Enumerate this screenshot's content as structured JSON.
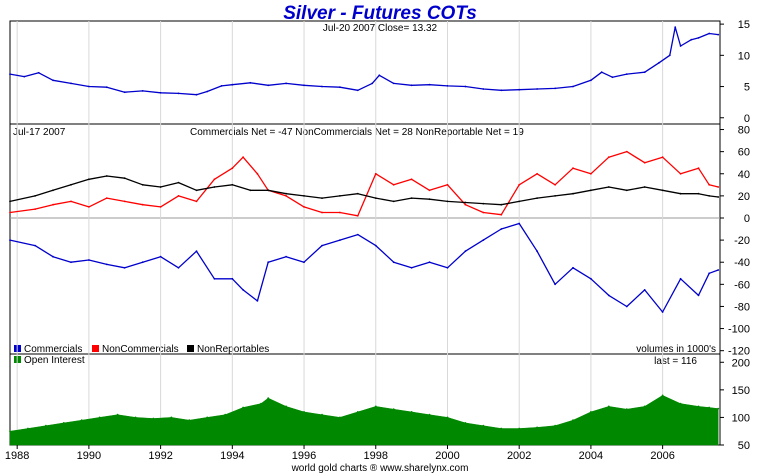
{
  "chart_data": [
    {
      "type": "line",
      "panel": "price",
      "title": "Silver - Futures COTs",
      "subtitle": "Jul-20  2007    Close= 13.32",
      "yticks": [
        0,
        5,
        10,
        15
      ],
      "ylim": [
        -1,
        15.5
      ],
      "xlim": [
        1987.8,
        2007.6
      ],
      "series": [
        {
          "color": "#0000cc",
          "x": [
            1987.8,
            1988.2,
            1988.6,
            1989.0,
            1989.5,
            1990.0,
            1990.5,
            1991.0,
            1991.5,
            1992.0,
            1992.5,
            1993.0,
            1993.3,
            1993.7,
            1994.0,
            1994.5,
            1995.0,
            1995.5,
            1996.0,
            1996.5,
            1997.0,
            1997.5,
            1997.9,
            1998.1,
            1998.5,
            1999.0,
            1999.5,
            2000.0,
            2000.5,
            2001.0,
            2001.5,
            2002.0,
            2002.5,
            2003.0,
            2003.5,
            2004.0,
            2004.3,
            2004.6,
            2005.0,
            2005.5,
            2005.9,
            2006.2,
            2006.35,
            2006.5,
            2006.8,
            2007.0,
            2007.3,
            2007.55
          ],
          "y": [
            7.0,
            6.6,
            7.2,
            6.0,
            5.5,
            5.0,
            4.9,
            4.1,
            4.3,
            4.0,
            3.9,
            3.7,
            4.2,
            5.1,
            5.3,
            5.6,
            5.2,
            5.5,
            5.2,
            5.0,
            4.9,
            4.4,
            5.5,
            6.8,
            5.5,
            5.2,
            5.3,
            5.1,
            5.0,
            4.6,
            4.4,
            4.5,
            4.6,
            4.7,
            5.0,
            6.0,
            7.3,
            6.5,
            7.0,
            7.3,
            8.8,
            10.0,
            14.5,
            11.5,
            12.5,
            12.8,
            13.5,
            13.32
          ]
        }
      ]
    },
    {
      "type": "line",
      "panel": "cot",
      "date_label": "Jul-17  2007",
      "header": "Commercials Net = -47         NonCommercials Net = 28         NonReportable Net = 19",
      "yticks": [
        80,
        60,
        40,
        20,
        0,
        -20,
        -40,
        -60,
        -80,
        -100,
        -120
      ],
      "ylim": [
        -123,
        85
      ],
      "xlim": [
        1987.8,
        2007.6
      ],
      "note": "volumes in 1000's",
      "series": [
        {
          "name": "Commercials",
          "color": "#0000cc",
          "x": [
            1987.8,
            1988.5,
            1989.0,
            1989.5,
            1990.0,
            1990.5,
            1991.0,
            1991.5,
            1992.0,
            1992.5,
            1993.0,
            1993.5,
            1994.0,
            1994.3,
            1994.7,
            1995.0,
            1995.5,
            1996.0,
            1996.5,
            1997.0,
            1997.5,
            1998.0,
            1998.5,
            1999.0,
            1999.5,
            2000.0,
            2000.5,
            2001.0,
            2001.5,
            2002.0,
            2002.5,
            2003.0,
            2003.5,
            2004.0,
            2004.5,
            2005.0,
            2005.5,
            2006.0,
            2006.5,
            2007.0,
            2007.3,
            2007.55
          ],
          "y": [
            -20,
            -25,
            -35,
            -40,
            -38,
            -42,
            -45,
            -40,
            -35,
            -45,
            -30,
            -55,
            -55,
            -65,
            -75,
            -40,
            -35,
            -40,
            -25,
            -20,
            -15,
            -25,
            -40,
            -45,
            -40,
            -45,
            -30,
            -20,
            -10,
            -5,
            -30,
            -60,
            -45,
            -55,
            -70,
            -80,
            -65,
            -85,
            -55,
            -70,
            -50,
            -47
          ]
        },
        {
          "name": "NonCommercials",
          "color": "#ff0000",
          "x": [
            1987.8,
            1988.5,
            1989.0,
            1989.5,
            1990.0,
            1990.5,
            1991.0,
            1991.5,
            1992.0,
            1992.5,
            1993.0,
            1993.5,
            1994.0,
            1994.3,
            1994.7,
            1995.0,
            1995.5,
            1996.0,
            1996.5,
            1997.0,
            1997.5,
            1998.0,
            1998.5,
            1999.0,
            1999.5,
            2000.0,
            2000.5,
            2001.0,
            2001.5,
            2002.0,
            2002.5,
            2003.0,
            2003.5,
            2004.0,
            2004.5,
            2005.0,
            2005.5,
            2006.0,
            2006.5,
            2007.0,
            2007.3,
            2007.55
          ],
          "y": [
            5,
            8,
            12,
            15,
            10,
            18,
            15,
            12,
            10,
            20,
            15,
            35,
            45,
            55,
            40,
            25,
            20,
            10,
            5,
            5,
            2,
            40,
            30,
            35,
            25,
            30,
            12,
            5,
            3,
            30,
            40,
            30,
            45,
            40,
            55,
            60,
            50,
            55,
            40,
            45,
            30,
            28
          ]
        },
        {
          "name": "NonReportables",
          "color": "#000000",
          "x": [
            1987.8,
            1988.5,
            1989.0,
            1989.5,
            1990.0,
            1990.5,
            1991.0,
            1991.5,
            1992.0,
            1992.5,
            1993.0,
            1993.5,
            1994.0,
            1994.5,
            1995.0,
            1995.5,
            1996.0,
            1996.5,
            1997.0,
            1997.5,
            1998.0,
            1998.5,
            1999.0,
            1999.5,
            2000.0,
            2000.5,
            2001.0,
            2001.5,
            2002.0,
            2002.5,
            2003.0,
            2003.5,
            2004.0,
            2004.5,
            2005.0,
            2005.5,
            2006.0,
            2006.5,
            2007.0,
            2007.3,
            2007.55
          ],
          "y": [
            15,
            20,
            25,
            30,
            35,
            38,
            36,
            30,
            28,
            32,
            25,
            28,
            30,
            25,
            25,
            22,
            20,
            18,
            20,
            22,
            18,
            15,
            18,
            17,
            15,
            14,
            13,
            12,
            15,
            18,
            20,
            22,
            25,
            28,
            25,
            28,
            25,
            22,
            22,
            20,
            19
          ]
        }
      ],
      "legend": {
        "placement": "bottom-left"
      }
    },
    {
      "type": "area",
      "panel": "open_interest",
      "yticks": [
        50,
        100,
        150,
        200
      ],
      "ylim": [
        50,
        215
      ],
      "xlim": [
        1987.8,
        2007.6
      ],
      "last_label": "last = 116",
      "series": [
        {
          "name": "Open Interest",
          "color": "#008800",
          "x": [
            1987.8,
            1988.3,
            1988.8,
            1989.3,
            1989.8,
            1990.3,
            1990.8,
            1991.3,
            1991.8,
            1992.3,
            1992.8,
            1993.3,
            1993.8,
            1994.3,
            1994.8,
            1995.0,
            1995.5,
            1996.0,
            1996.5,
            1997.0,
            1997.5,
            1998.0,
            1998.5,
            1999.0,
            1999.5,
            2000.0,
            2000.5,
            2001.0,
            2001.5,
            2002.0,
            2002.5,
            2003.0,
            2003.5,
            2004.0,
            2004.5,
            2005.0,
            2005.5,
            2006.0,
            2006.5,
            2007.0,
            2007.3,
            2007.55
          ],
          "y": [
            75,
            80,
            85,
            90,
            95,
            100,
            105,
            100,
            98,
            100,
            95,
            100,
            105,
            118,
            125,
            135,
            120,
            110,
            105,
            100,
            110,
            120,
            115,
            110,
            105,
            100,
            90,
            85,
            80,
            80,
            82,
            85,
            95,
            110,
            120,
            115,
            120,
            140,
            125,
            120,
            118,
            116
          ]
        }
      ]
    }
  ],
  "xaxis": {
    "ticks": [
      "1988",
      "1990",
      "1992",
      "1994",
      "1996",
      "1998",
      "2000",
      "2002",
      "2004",
      "2006"
    ],
    "values": [
      1988,
      1990,
      1992,
      1994,
      1996,
      1998,
      2000,
      2002,
      2004,
      2006
    ]
  },
  "footer": "world gold charts ® www.sharelynx.com"
}
